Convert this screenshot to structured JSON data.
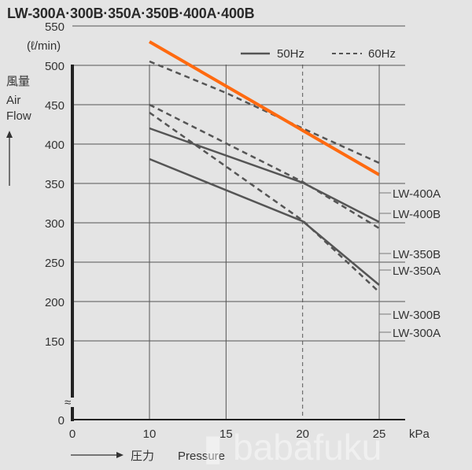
{
  "title": "LW-300A·300B·350A·350B·400A·400B",
  "watermark": "babafuku",
  "chart_data": {
    "type": "line",
    "title": "LW-300A·300B·350A·350B·400A·400B",
    "ylabel_unit": "(ℓ/min)",
    "ylabel_jp": "風量",
    "ylabel_en": [
      "Air",
      "Flow"
    ],
    "ylabel_arrow": "↑",
    "xlabel_unit": "kPa",
    "xlabel_jp": "圧力",
    "xlabel_en": "Pressure",
    "xlabel_arrow": "———→",
    "xlim": [
      0,
      25
    ],
    "ylim": [
      0,
      550
    ],
    "y_axis_break": "≈",
    "x_ticks": [
      "0",
      "10",
      "15",
      "20",
      "25"
    ],
    "y_ticks": [
      "550",
      "500",
      "450",
      "400",
      "350",
      "300",
      "250",
      "200",
      "150",
      "0"
    ],
    "grid": true,
    "legend_position": "top-right",
    "legend": [
      {
        "label": "50Hz",
        "style": "solid"
      },
      {
        "label": "60Hz",
        "style": "dashed"
      }
    ],
    "series": [
      {
        "name": "LW-400A",
        "frequency": "60Hz",
        "style": "dashed",
        "color": "#555555",
        "x": [
          10,
          15,
          20,
          25
        ],
        "y": [
          505,
          465,
          420,
          376
        ]
      },
      {
        "name": "LW-400B",
        "frequency": "50Hz",
        "style": "solid",
        "color": "#ff6a10",
        "x": [
          10,
          25
        ],
        "y": [
          530,
          361
        ]
      },
      {
        "name": "LW-350B",
        "frequency": "50Hz",
        "style": "solid",
        "color": "#555555",
        "x": [
          10,
          20,
          25
        ],
        "y": [
          420,
          351,
          301
        ]
      },
      {
        "name": "LW-350A",
        "frequency": "60Hz",
        "style": "dashed",
        "color": "#555555",
        "x": [
          10,
          20,
          25
        ],
        "y": [
          450,
          352,
          293
        ]
      },
      {
        "name": "LW-300B",
        "frequency": "50Hz",
        "style": "solid",
        "color": "#555555",
        "x": [
          10,
          20,
          25
        ],
        "y": [
          381,
          302,
          221
        ]
      },
      {
        "name": "LW-300A",
        "frequency": "60Hz",
        "style": "dashed",
        "color": "#555555",
        "x": [
          10,
          20,
          25
        ],
        "y": [
          440,
          303,
          212
        ]
      }
    ]
  }
}
